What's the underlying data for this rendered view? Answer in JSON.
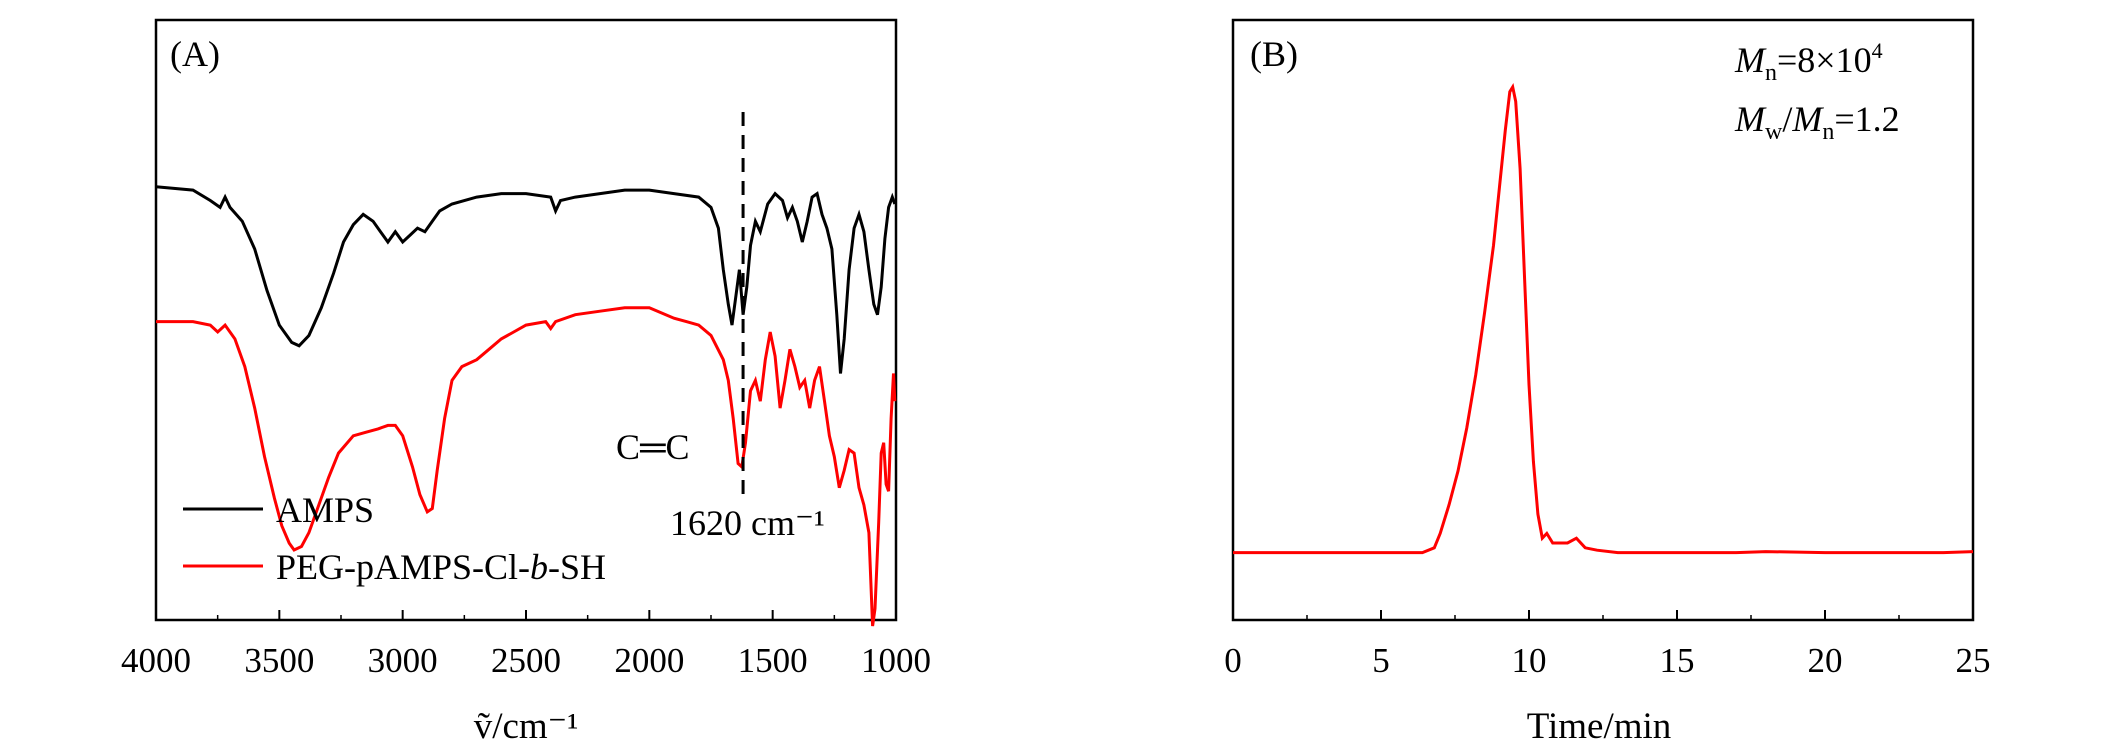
{
  "chart_data": [
    {
      "type": "line",
      "panel_label": "(A)",
      "xlabel": "ṽ/cm⁻¹",
      "ylabel": "",
      "xlim": [
        4000,
        1000
      ],
      "x_reversed": true,
      "xticks": [
        "4000",
        "3500",
        "3000",
        "2500",
        "2000",
        "1500",
        "1000"
      ],
      "y_ticks_shown": false,
      "legend_position": "bottom-left",
      "series": [
        {
          "name": "AMPS",
          "color": "#000000",
          "points": [
            [
              4000,
              0.92
            ],
            [
              3850,
              0.91
            ],
            [
              3780,
              0.88
            ],
            [
              3740,
              0.86
            ],
            [
              3720,
              0.89
            ],
            [
              3700,
              0.86
            ],
            [
              3650,
              0.82
            ],
            [
              3600,
              0.74
            ],
            [
              3550,
              0.62
            ],
            [
              3500,
              0.52
            ],
            [
              3450,
              0.47
            ],
            [
              3420,
              0.46
            ],
            [
              3380,
              0.49
            ],
            [
              3330,
              0.57
            ],
            [
              3280,
              0.67
            ],
            [
              3240,
              0.76
            ],
            [
              3200,
              0.81
            ],
            [
              3160,
              0.84
            ],
            [
              3120,
              0.82
            ],
            [
              3090,
              0.79
            ],
            [
              3060,
              0.76
            ],
            [
              3030,
              0.79
            ],
            [
              3000,
              0.76
            ],
            [
              2970,
              0.78
            ],
            [
              2940,
              0.8
            ],
            [
              2910,
              0.79
            ],
            [
              2880,
              0.82
            ],
            [
              2850,
              0.85
            ],
            [
              2800,
              0.87
            ],
            [
              2700,
              0.89
            ],
            [
              2600,
              0.9
            ],
            [
              2500,
              0.9
            ],
            [
              2400,
              0.89
            ],
            [
              2380,
              0.85
            ],
            [
              2360,
              0.88
            ],
            [
              2300,
              0.89
            ],
            [
              2200,
              0.9
            ],
            [
              2100,
              0.91
            ],
            [
              2000,
              0.91
            ],
            [
              1900,
              0.9
            ],
            [
              1800,
              0.89
            ],
            [
              1750,
              0.86
            ],
            [
              1720,
              0.8
            ],
            [
              1700,
              0.68
            ],
            [
              1680,
              0.58
            ],
            [
              1665,
              0.52
            ],
            [
              1650,
              0.6
            ],
            [
              1635,
              0.68
            ],
            [
              1620,
              0.55
            ],
            [
              1605,
              0.63
            ],
            [
              1590,
              0.75
            ],
            [
              1570,
              0.82
            ],
            [
              1550,
              0.79
            ],
            [
              1520,
              0.87
            ],
            [
              1490,
              0.9
            ],
            [
              1460,
              0.88
            ],
            [
              1440,
              0.83
            ],
            [
              1420,
              0.86
            ],
            [
              1400,
              0.82
            ],
            [
              1380,
              0.76
            ],
            [
              1360,
              0.82
            ],
            [
              1340,
              0.89
            ],
            [
              1320,
              0.9
            ],
            [
              1300,
              0.84
            ],
            [
              1280,
              0.8
            ],
            [
              1260,
              0.74
            ],
            [
              1240,
              0.55
            ],
            [
              1225,
              0.38
            ],
            [
              1210,
              0.48
            ],
            [
              1190,
              0.68
            ],
            [
              1170,
              0.8
            ],
            [
              1150,
              0.84
            ],
            [
              1130,
              0.79
            ],
            [
              1110,
              0.68
            ],
            [
              1090,
              0.58
            ],
            [
              1075,
              0.55
            ],
            [
              1060,
              0.63
            ],
            [
              1045,
              0.77
            ],
            [
              1030,
              0.86
            ],
            [
              1015,
              0.89
            ],
            [
              1005,
              0.87
            ]
          ]
        },
        {
          "name": "PEG-pAMPS-Cl-b-SH",
          "color": "#ff0000",
          "points": [
            [
              4000,
              0.53
            ],
            [
              3850,
              0.53
            ],
            [
              3780,
              0.52
            ],
            [
              3750,
              0.5
            ],
            [
              3720,
              0.52
            ],
            [
              3680,
              0.48
            ],
            [
              3640,
              0.4
            ],
            [
              3600,
              0.28
            ],
            [
              3560,
              0.14
            ],
            [
              3520,
              0.02
            ],
            [
              3490,
              -0.06
            ],
            [
              3460,
              -0.11
            ],
            [
              3440,
              -0.13
            ],
            [
              3410,
              -0.12
            ],
            [
              3380,
              -0.08
            ],
            [
              3340,
              0.0
            ],
            [
              3300,
              0.08
            ],
            [
              3260,
              0.15
            ],
            [
              3200,
              0.2
            ],
            [
              3150,
              0.21
            ],
            [
              3100,
              0.22
            ],
            [
              3060,
              0.23
            ],
            [
              3030,
              0.23
            ],
            [
              3000,
              0.2
            ],
            [
              2960,
              0.11
            ],
            [
              2930,
              0.03
            ],
            [
              2900,
              -0.02
            ],
            [
              2880,
              -0.01
            ],
            [
              2860,
              0.1
            ],
            [
              2830,
              0.25
            ],
            [
              2800,
              0.36
            ],
            [
              2760,
              0.4
            ],
            [
              2700,
              0.42
            ],
            [
              2650,
              0.45
            ],
            [
              2600,
              0.48
            ],
            [
              2550,
              0.5
            ],
            [
              2500,
              0.52
            ],
            [
              2420,
              0.53
            ],
            [
              2400,
              0.51
            ],
            [
              2380,
              0.53
            ],
            [
              2300,
              0.55
            ],
            [
              2200,
              0.56
            ],
            [
              2100,
              0.57
            ],
            [
              2000,
              0.57
            ],
            [
              1900,
              0.54
            ],
            [
              1850,
              0.53
            ],
            [
              1800,
              0.52
            ],
            [
              1750,
              0.49
            ],
            [
              1700,
              0.42
            ],
            [
              1680,
              0.36
            ],
            [
              1660,
              0.25
            ],
            [
              1640,
              0.12
            ],
            [
              1625,
              0.11
            ],
            [
              1610,
              0.18
            ],
            [
              1590,
              0.33
            ],
            [
              1570,
              0.36
            ],
            [
              1550,
              0.3
            ],
            [
              1530,
              0.42
            ],
            [
              1510,
              0.5
            ],
            [
              1490,
              0.43
            ],
            [
              1470,
              0.28
            ],
            [
              1450,
              0.36
            ],
            [
              1430,
              0.45
            ],
            [
              1410,
              0.4
            ],
            [
              1390,
              0.34
            ],
            [
              1370,
              0.36
            ],
            [
              1350,
              0.28
            ],
            [
              1330,
              0.36
            ],
            [
              1310,
              0.4
            ],
            [
              1290,
              0.3
            ],
            [
              1270,
              0.2
            ],
            [
              1250,
              0.14
            ],
            [
              1230,
              0.05
            ],
            [
              1210,
              0.1
            ],
            [
              1190,
              0.16
            ],
            [
              1170,
              0.15
            ],
            [
              1150,
              0.05
            ],
            [
              1130,
              0.0
            ],
            [
              1110,
              -0.08
            ],
            [
              1095,
              -0.35
            ],
            [
              1085,
              -0.3
            ],
            [
              1070,
              -0.05
            ],
            [
              1060,
              0.15
            ],
            [
              1050,
              0.18
            ],
            [
              1040,
              0.06
            ],
            [
              1030,
              0.04
            ],
            [
              1020,
              0.25
            ],
            [
              1010,
              0.38
            ],
            [
              1005,
              0.3
            ]
          ]
        }
      ],
      "annotations": [
        {
          "label": "C═C",
          "x": 1620
        },
        {
          "label": "1620 cm⁻¹",
          "x": 1620
        },
        {
          "marker": "dashed vertical line",
          "x": 1620
        }
      ]
    },
    {
      "type": "line",
      "panel_label": "(B)",
      "xlabel": "Time/min",
      "ylabel": "",
      "xlim": [
        0,
        25
      ],
      "xticks": [
        "0",
        "5",
        "10",
        "15",
        "20",
        "25"
      ],
      "y_ticks_shown": false,
      "series": [
        {
          "name": "",
          "color": "#ff0000",
          "points": [
            [
              0,
              0.03
            ],
            [
              2,
              0.03
            ],
            [
              4,
              0.03
            ],
            [
              5.5,
              0.03
            ],
            [
              6.4,
              0.03
            ],
            [
              6.8,
              0.04
            ],
            [
              7.0,
              0.07
            ],
            [
              7.3,
              0.13
            ],
            [
              7.6,
              0.2
            ],
            [
              7.9,
              0.29
            ],
            [
              8.2,
              0.4
            ],
            [
              8.5,
              0.53
            ],
            [
              8.8,
              0.67
            ],
            [
              9.0,
              0.79
            ],
            [
              9.2,
              0.91
            ],
            [
              9.35,
              0.99
            ],
            [
              9.45,
              1.0
            ],
            [
              9.55,
              0.97
            ],
            [
              9.7,
              0.83
            ],
            [
              9.85,
              0.6
            ],
            [
              10.0,
              0.38
            ],
            [
              10.15,
              0.22
            ],
            [
              10.3,
              0.11
            ],
            [
              10.45,
              0.06
            ],
            [
              10.6,
              0.07
            ],
            [
              10.8,
              0.05
            ],
            [
              11.0,
              0.05
            ],
            [
              11.3,
              0.05
            ],
            [
              11.6,
              0.06
            ],
            [
              11.9,
              0.04
            ],
            [
              12.3,
              0.035
            ],
            [
              13,
              0.03
            ],
            [
              15,
              0.03
            ],
            [
              17,
              0.03
            ],
            [
              18,
              0.032
            ],
            [
              20,
              0.03
            ],
            [
              22,
              0.03
            ],
            [
              24,
              0.03
            ],
            [
              25,
              0.032
            ]
          ]
        }
      ],
      "annotations": [
        {
          "line1": {
            "sym": "M",
            "sub": "n",
            "tail": "=8×10",
            "sup": "4"
          }
        },
        {
          "line2": {
            "sym1": "M",
            "sub1": "w",
            "mid": "/",
            "sym2": "M",
            "sub2": "n",
            "tail": "=1.2"
          }
        }
      ]
    }
  ]
}
